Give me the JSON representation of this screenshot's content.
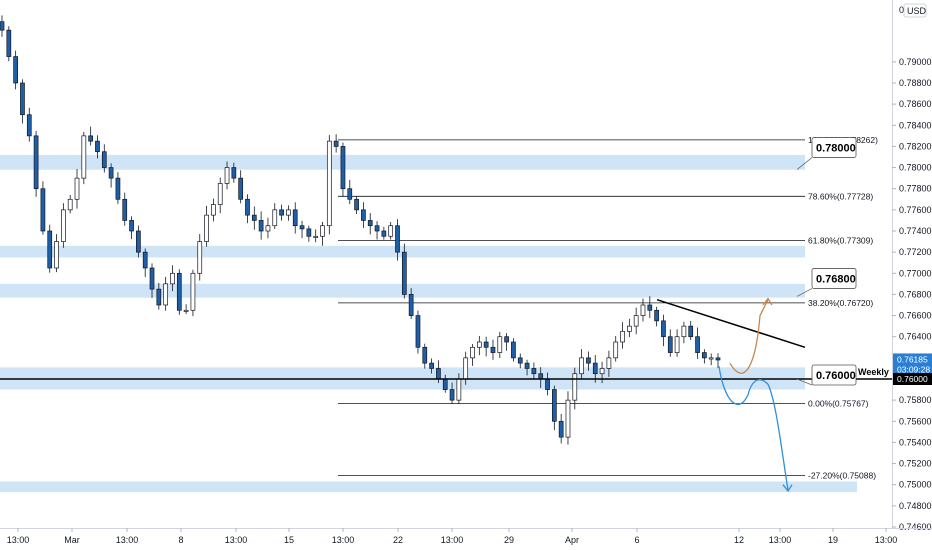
{
  "currency_badge": "USD",
  "currency_prefix": "0.",
  "chart_data": {
    "type": "candlestick",
    "y_range": [
      0.746,
      0.795
    ],
    "price_ticks": [
      "0.79000",
      "0.78800",
      "0.78600",
      "0.78400",
      "0.78200",
      "0.78000",
      "0.77800",
      "0.77600",
      "0.77400",
      "0.77200",
      "0.77000",
      "0.76800",
      "0.76600",
      "0.76400",
      "0.76200",
      "0.76000",
      "0.75800",
      "0.75600",
      "0.75400",
      "0.75200",
      "0.75000",
      "0.74800",
      "0.74600"
    ],
    "time_ticks": [
      "13:00",
      "Mar",
      "13:00",
      "8",
      "13:00",
      "15",
      "13:00",
      "22",
      "13:00",
      "29",
      "Apr",
      "6",
      "12",
      "13:00",
      "19",
      "13:00"
    ],
    "current_price": "0.76185",
    "countdown": "03:09:28",
    "weekly_level": {
      "label": "Weekly",
      "price": 0.76,
      "price_text": "0.76000"
    },
    "zones": [
      {
        "from": 0.7798,
        "to": 0.7812
      },
      {
        "from": 0.7715,
        "to": 0.7726
      },
      {
        "from": 0.7677,
        "to": 0.769
      },
      {
        "from": 0.759,
        "to": 0.7611
      },
      {
        "from": 0.7493,
        "to": 0.7503
      }
    ],
    "fib_levels": [
      {
        "label": "100.00%(0.78262)",
        "price": 0.78262
      },
      {
        "label": "78.60%(0.77728)",
        "price": 0.77728
      },
      {
        "label": "61.80%(0.77309)",
        "price": 0.77309
      },
      {
        "label": "38.20%(0.76720)",
        "price": 0.7672
      },
      {
        "label": "0.00%(0.75767)",
        "price": 0.75767
      },
      {
        "label": "-27.20%(0.75088)",
        "price": 0.75088
      }
    ],
    "level_boxes": [
      {
        "label": "0.78000",
        "price": 0.78
      },
      {
        "label": "0.76800",
        "price": 0.768
      },
      {
        "label": "0.76000",
        "price": 0.76
      }
    ],
    "trendline": {
      "from_price": 0.7675,
      "to_price": 0.763
    },
    "candle_path": [
      0.793,
      0.7905,
      0.788,
      0.785,
      0.783,
      0.778,
      0.774,
      0.7705,
      0.773,
      0.776,
      0.777,
      0.779,
      0.783,
      0.7825,
      0.7815,
      0.78,
      0.779,
      0.777,
      0.775,
      0.774,
      0.772,
      0.7705,
      0.7685,
      0.767,
      0.769,
      0.77,
      0.7665,
      0.7665,
      0.77,
      0.773,
      0.7755,
      0.7765,
      0.7785,
      0.78,
      0.779,
      0.777,
      0.7755,
      0.775,
      0.774,
      0.7745,
      0.776,
      0.7755,
      0.776,
      0.7745,
      0.7742,
      0.7735,
      0.7735,
      0.7745,
      0.7825,
      0.782,
      0.778,
      0.777,
      0.776,
      0.775,
      0.7745,
      0.774,
      0.7735,
      0.7745,
      0.772,
      0.768,
      0.766,
      0.763,
      0.7615,
      0.761,
      0.76,
      0.759,
      0.758,
      0.76,
      0.762,
      0.763,
      0.7635,
      0.763,
      0.7625,
      0.764,
      0.7635,
      0.762,
      0.7615,
      0.761,
      0.7605,
      0.76,
      0.759,
      0.756,
      0.7545,
      0.758,
      0.7605,
      0.762,
      0.7615,
      0.7605,
      0.761,
      0.762,
      0.7635,
      0.7645,
      0.765,
      0.766,
      0.767,
      0.7665,
      0.7655,
      0.764,
      0.7625,
      0.764,
      0.765,
      0.764,
      0.7625,
      0.762,
      0.762,
      0.7618
    ],
    "projections": [
      {
        "name": "bullish-projection",
        "color": "#c8874a"
      },
      {
        "name": "bearish-projection",
        "color": "#2f8fd8"
      }
    ],
    "colors": {
      "zone": "#cfe4f7",
      "candle_up": "#ffffff",
      "candle_down": "#1f5fa8",
      "wick": "#131722",
      "current_tag": "#2a7fd4",
      "weekly_tag": "#000000"
    }
  }
}
